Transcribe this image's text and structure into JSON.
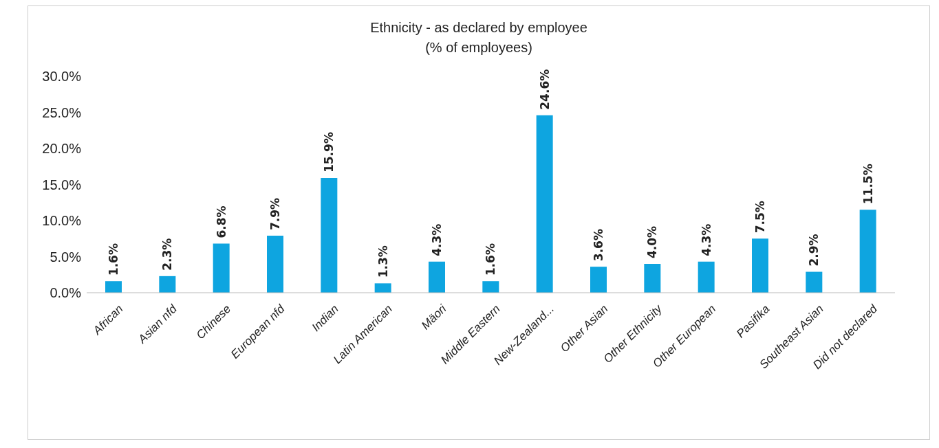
{
  "chart_data": {
    "type": "bar",
    "title": "Ethnicity - as declared by employee",
    "subtitle": "(% of employees)",
    "categories": [
      "African",
      "Asian nfd",
      "Chinese",
      "European nfd",
      "Indian",
      "Latin American",
      "Mäori",
      "Middle Eastern",
      "New-Zealand...",
      "Other Asian",
      "Other Ethnicity",
      "Other European",
      "Pasifika",
      "Southeast Asian",
      "Did not declared"
    ],
    "values": [
      1.6,
      2.3,
      6.8,
      7.9,
      15.9,
      1.3,
      4.3,
      1.6,
      24.6,
      3.6,
      4.0,
      4.3,
      7.5,
      2.9,
      11.5
    ],
    "value_labels": [
      "1.6%",
      "2.3%",
      "6.8%",
      "7.9%",
      "15.9%",
      "1.3%",
      "4.3%",
      "1.6%",
      "24.6%",
      "3.6%",
      "4.0%",
      "4.3%",
      "7.5%",
      "2.9%",
      "11.5%"
    ],
    "color": "#0ea5e0",
    "ylim": [
      0,
      30
    ],
    "yticks": [
      {
        "value": 0,
        "label": "0.0%"
      },
      {
        "value": 5,
        "label": "5.0%"
      },
      {
        "value": 10,
        "label": "10.0%"
      },
      {
        "value": 15,
        "label": "15.0%"
      },
      {
        "value": 20,
        "label": "20.0%"
      },
      {
        "value": 25,
        "label": "25.0%"
      },
      {
        "value": 30,
        "label": "30.0%"
      }
    ],
    "grid": false,
    "legend": false
  }
}
